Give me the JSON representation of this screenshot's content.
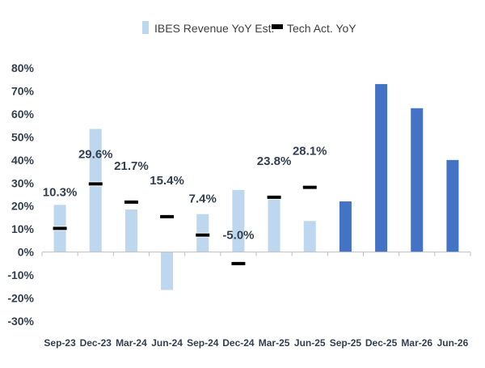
{
  "chart_data": {
    "type": "bar",
    "title": "",
    "xlabel": "",
    "ylabel": "",
    "ylim": [
      -0.3,
      0.8
    ],
    "yticks": [
      "80%",
      "70%",
      "60%",
      "50%",
      "40%",
      "30%",
      "20%",
      "10%",
      "0%",
      "-10%",
      "-20%",
      "-30%"
    ],
    "categories": [
      "Sep-23",
      "Dec-23",
      "Mar-24",
      "Jun-24",
      "Sep-24",
      "Dec-24",
      "Mar-25",
      "Jun-25",
      "Sep-25",
      "Dec-25",
      "Mar-26",
      "Jun-26"
    ],
    "legend": {
      "position": "top-center",
      "entries": [
        "IBES Revenue YoY Est.",
        "Tech Act. YoY"
      ]
    },
    "series": [
      {
        "name": "IBES Revenue YoY Est.",
        "kind": "bar",
        "values": [
          0.205,
          0.535,
          0.185,
          -0.165,
          0.165,
          0.27,
          0.245,
          0.135,
          0.22,
          0.73,
          0.625,
          0.4
        ],
        "colors": [
          "#bdd7ee",
          "#bdd7ee",
          "#bdd7ee",
          "#bdd7ee",
          "#bdd7ee",
          "#bdd7ee",
          "#bdd7ee",
          "#bdd7ee",
          "#4472c4",
          "#4472c4",
          "#4472c4",
          "#4472c4"
        ]
      },
      {
        "name": "Tech Act. YoY",
        "kind": "marker",
        "values": [
          0.103,
          0.296,
          0.217,
          0.154,
          0.074,
          -0.05,
          0.238,
          0.281,
          null,
          null,
          null,
          null
        ],
        "labels": [
          "10.3%",
          "29.6%",
          "21.7%",
          "15.4%",
          "7.4%",
          "-5.0%",
          "23.8%",
          "28.1%",
          null,
          null,
          null,
          null
        ]
      }
    ],
    "colors": {
      "estimate_light": "#bdd7ee",
      "estimate_dark": "#4472c4",
      "marker_fill": "#000000",
      "axis": "#bfbfbf",
      "text": "#333f50"
    }
  }
}
